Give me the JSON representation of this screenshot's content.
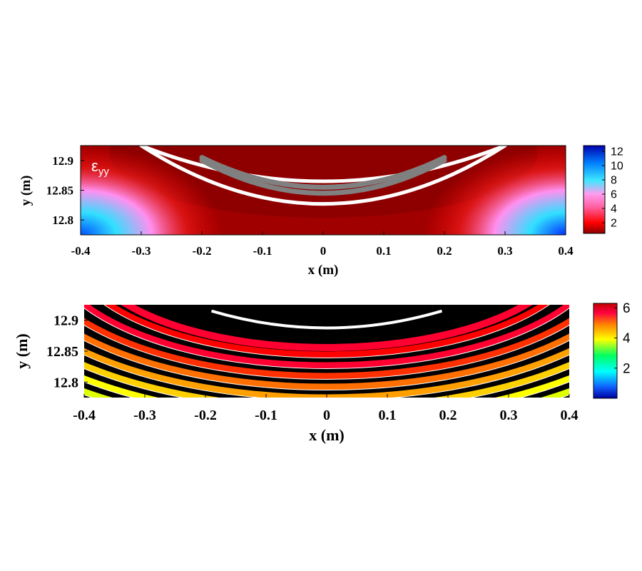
{
  "chart_data": [
    {
      "type": "heatmap",
      "annotation": "ε",
      "annotation_sub": "yy",
      "xlabel": "x (m)",
      "ylabel": "y (m)",
      "xlim": [
        -0.4,
        0.4
      ],
      "ylim": [
        12.775,
        12.925
      ],
      "xticks": [
        -0.4,
        -0.3,
        -0.2,
        -0.1,
        0,
        0.1,
        0.2,
        0.3,
        0.4
      ],
      "xtick_labels": [
        "-0.4",
        "-0.3",
        "-0.2",
        "-0.1",
        "0",
        "0.1",
        "0.2",
        "0.3",
        "0.4"
      ],
      "yticks": [
        12.8,
        12.85,
        12.9
      ],
      "ytick_labels": [
        "12.8",
        "12.85",
        "12.9"
      ],
      "colorbar": {
        "range": [
          0.5,
          12.8
        ],
        "ticks": [
          2,
          4,
          6,
          8,
          10,
          12
        ],
        "tick_labels": [
          "2",
          "4",
          "6",
          "8",
          "10",
          "12"
        ],
        "colormap": "dark red → red → pink → cyan → blue"
      },
      "overlay_arcs": [
        {
          "color": "#ffffff",
          "x_range": [
            -0.3,
            0.3
          ],
          "y_center": 12.827,
          "y_edge": 12.925
        },
        {
          "color": "#ffffff",
          "x_range": [
            -0.3,
            0.3
          ],
          "y_center": 12.865,
          "y_edge": 12.925
        },
        {
          "color": "#808080",
          "x_range": [
            -0.2,
            0.2
          ],
          "y_center": 12.845,
          "y_edge": 12.9
        },
        {
          "color": "#808080",
          "x_range": [
            -0.2,
            0.2
          ],
          "y_center": 12.855,
          "y_edge": 12.905
        }
      ]
    },
    {
      "type": "heatmap",
      "style": "banded contours",
      "xlabel": "x (m)",
      "ylabel": "y (m)",
      "xlim": [
        -0.4,
        0.4
      ],
      "ylim": [
        12.775,
        12.925
      ],
      "xticks": [
        -0.4,
        -0.3,
        -0.2,
        -0.1,
        0,
        0.1,
        0.2,
        0.3,
        0.4
      ],
      "xtick_labels": [
        "-0.4",
        "-0.3",
        "-0.2",
        "-0.1",
        "0",
        "0.1",
        "0.2",
        "0.3",
        "0.4"
      ],
      "yticks": [
        12.8,
        12.85,
        12.9
      ],
      "ytick_labels": [
        "12.8",
        "12.85",
        "12.9"
      ],
      "colorbar": {
        "range": [
          0,
          6.3
        ],
        "ticks": [
          2,
          4,
          6
        ],
        "tick_labels": [
          "2",
          "4",
          "6"
        ],
        "colormap": "blue → cyan → green → yellow → orange → red"
      }
    }
  ]
}
